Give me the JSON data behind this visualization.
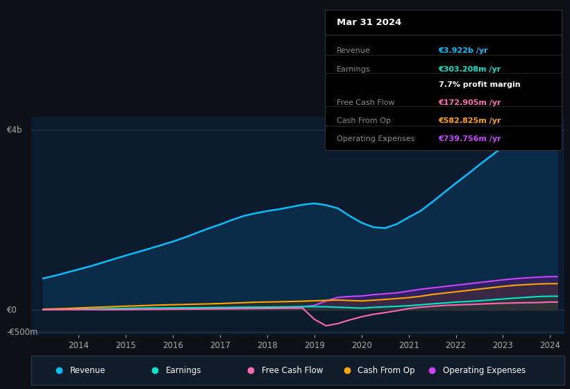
{
  "bg_color": "#0d1117",
  "plot_bg_color": "#0c1a2e",
  "grid_color": "#2a3a4a",
  "title_text": "Mar 31 2024",
  "tooltip_rows": [
    {
      "label": "Revenue",
      "value": "€3.922b /yr",
      "value_color": "#00bfff",
      "label_color": "#888888"
    },
    {
      "label": "Earnings",
      "value": "€303.208m /yr",
      "value_color": "#00e5cc",
      "label_color": "#888888"
    },
    {
      "label": "",
      "value": "7.7% profit margin",
      "value_color": "#ffffff",
      "label_color": ""
    },
    {
      "label": "Free Cash Flow",
      "value": "€172.905m /yr",
      "value_color": "#ff69b4",
      "label_color": "#888888"
    },
    {
      "label": "Cash From Op",
      "value": "€582.825m /yr",
      "value_color": "#ffa500",
      "label_color": "#888888"
    },
    {
      "label": "Operating Expenses",
      "value": "€739.756m /yr",
      "value_color": "#cc44ff",
      "label_color": "#888888"
    }
  ],
  "ylabel_4b": "€4b",
  "ylabel_0": "€0",
  "ylabel_neg500m": "-€500m",
  "years": [
    2013.25,
    2013.5,
    2013.75,
    2014.0,
    2014.25,
    2014.5,
    2014.75,
    2015.0,
    2015.25,
    2015.5,
    2015.75,
    2016.0,
    2016.25,
    2016.5,
    2016.75,
    2017.0,
    2017.25,
    2017.5,
    2017.75,
    2018.0,
    2018.25,
    2018.5,
    2018.75,
    2019.0,
    2019.25,
    2019.5,
    2019.75,
    2020.0,
    2020.25,
    2020.5,
    2020.75,
    2021.0,
    2021.25,
    2021.5,
    2021.75,
    2022.0,
    2022.25,
    2022.5,
    2022.75,
    2023.0,
    2023.25,
    2023.5,
    2023.75,
    2024.0,
    2024.15
  ],
  "revenue": [
    700,
    760,
    830,
    900,
    970,
    1050,
    1130,
    1210,
    1285,
    1360,
    1440,
    1520,
    1610,
    1710,
    1810,
    1900,
    2000,
    2090,
    2150,
    2200,
    2240,
    2290,
    2340,
    2370,
    2330,
    2260,
    2090,
    1940,
    1840,
    1820,
    1910,
    2060,
    2200,
    2400,
    2610,
    2820,
    3020,
    3230,
    3430,
    3630,
    3760,
    3850,
    3920,
    3922,
    3922
  ],
  "earnings": [
    10,
    12,
    15,
    18,
    20,
    24,
    28,
    32,
    36,
    40,
    42,
    44,
    46,
    48,
    50,
    52,
    55,
    58,
    60,
    62,
    64,
    67,
    70,
    72,
    68,
    58,
    48,
    38,
    55,
    68,
    78,
    92,
    112,
    133,
    152,
    172,
    186,
    202,
    222,
    242,
    262,
    278,
    296,
    303,
    303
  ],
  "free_cash_flow": [
    5,
    6,
    6,
    7,
    5,
    4,
    3,
    5,
    8,
    10,
    12,
    14,
    16,
    17,
    19,
    21,
    23,
    27,
    29,
    31,
    34,
    37,
    38,
    -210,
    -355,
    -305,
    -225,
    -155,
    -100,
    -62,
    -20,
    28,
    58,
    78,
    98,
    108,
    118,
    128,
    138,
    148,
    154,
    158,
    163,
    173,
    173
  ],
  "cash_from_op": [
    15,
    22,
    30,
    42,
    52,
    62,
    72,
    82,
    90,
    100,
    108,
    114,
    120,
    127,
    133,
    140,
    150,
    160,
    170,
    175,
    180,
    186,
    192,
    202,
    210,
    218,
    208,
    198,
    215,
    232,
    252,
    272,
    302,
    342,
    372,
    402,
    432,
    462,
    492,
    522,
    547,
    562,
    577,
    583,
    583
  ],
  "operating_expenses": [
    5,
    8,
    10,
    12,
    14,
    16,
    18,
    20,
    22,
    24,
    25,
    27,
    30,
    33,
    37,
    41,
    44,
    49,
    52,
    56,
    60,
    65,
    70,
    98,
    198,
    278,
    298,
    308,
    338,
    358,
    378,
    418,
    458,
    488,
    518,
    548,
    578,
    608,
    638,
    668,
    693,
    713,
    728,
    740,
    740
  ],
  "revenue_color": "#00bfff",
  "earnings_color": "#00e5cc",
  "fcf_color": "#ff69b4",
  "cfop_color": "#ffa500",
  "opex_color": "#cc44ff",
  "revenue_fill": "#0a2e4a",
  "opex_fill": "#4a1a7a",
  "earnings_fill": "#004440",
  "cfop_fill": "#5a3a00",
  "legend_items": [
    "Revenue",
    "Earnings",
    "Free Cash Flow",
    "Cash From Op",
    "Operating Expenses"
  ],
  "legend_colors": [
    "#00bfff",
    "#00e5cc",
    "#ff69b4",
    "#ffa500",
    "#cc44ff"
  ],
  "xlim_min": 2013.0,
  "xlim_max": 2024.3,
  "ylim_min": -550,
  "ylim_max": 4300,
  "y_zero": 0,
  "y_4b": 4000,
  "y_neg500": -500,
  "xticks": [
    2014,
    2015,
    2016,
    2017,
    2018,
    2019,
    2020,
    2021,
    2022,
    2023,
    2024
  ]
}
